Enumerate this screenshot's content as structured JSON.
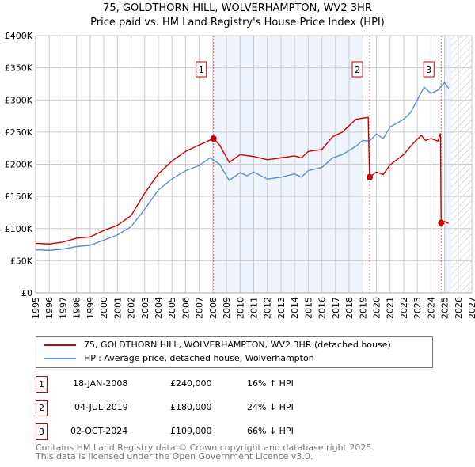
{
  "title": "75, GOLDTHORN HILL, WOLVERHAMPTON, WV2 3HR",
  "subtitle": "Price paid vs. HM Land Registry's House Price Index (HPI)",
  "chart_data": {
    "type": "line",
    "title": "75, GOLDTHORN HILL, WOLVERHAMPTON, WV2 3HR",
    "subtitle": "Price paid vs. HM Land Registry's House Price Index (HPI)",
    "xlim": [
      1995,
      2027
    ],
    "ylim": [
      0,
      400000
    ],
    "x_ticks": [
      "1995",
      "1996",
      "1997",
      "1998",
      "1999",
      "2000",
      "2001",
      "2002",
      "2003",
      "2004",
      "2005",
      "2006",
      "2007",
      "2008",
      "2009",
      "2010",
      "2011",
      "2012",
      "2013",
      "2014",
      "2015",
      "2016",
      "2017",
      "2018",
      "2019",
      "2020",
      "2021",
      "2022",
      "2023",
      "2024",
      "2025",
      "2026",
      "2027"
    ],
    "y_ticks": [
      {
        "v": 0,
        "label": "£0"
      },
      {
        "v": 50000,
        "label": "£50K"
      },
      {
        "v": 100000,
        "label": "£100K"
      },
      {
        "v": 150000,
        "label": "£150K"
      },
      {
        "v": 200000,
        "label": "£200K"
      },
      {
        "v": 250000,
        "label": "£250K"
      },
      {
        "v": 300000,
        "label": "£300K"
      },
      {
        "v": 350000,
        "label": "£350K"
      },
      {
        "v": 400000,
        "label": "£400K"
      }
    ],
    "grid": true,
    "colors": {
      "property": "#cc0000",
      "hpi": "#5b8fd4",
      "shade": "#eef3fc"
    },
    "shaded_ranges": [
      [
        2008.05,
        2019.0
      ],
      [
        2025.0,
        2025.5
      ]
    ],
    "hatched_from": 2025.5,
    "series": [
      {
        "name": "75, GOLDTHORN HILL, WOLVERHAMPTON, WV2 3HR (detached house)",
        "color": "#cc0000",
        "x": [
          1995,
          1996,
          1997,
          1998,
          1999,
          2000,
          2001,
          2002,
          2003,
          2004,
          2005,
          2006,
          2007,
          2008.05,
          2008.5,
          2009.2,
          2010,
          2011,
          2012,
          2013,
          2014,
          2014.5,
          2015,
          2016,
          2016.8,
          2017.5,
          2018.5,
          2019.4,
          2019.5,
          2020,
          2020.5,
          2021,
          2022,
          2022.8,
          2023.3,
          2023.6,
          2024,
          2024.5,
          2024.7,
          2024.75,
          2025,
          2025.3
        ],
        "y": [
          77000,
          76000,
          79000,
          85000,
          87000,
          97000,
          105000,
          120000,
          155000,
          185000,
          205000,
          220000,
          230000,
          240000,
          230000,
          203000,
          215000,
          212000,
          207000,
          210000,
          213000,
          210000,
          220000,
          223000,
          243000,
          250000,
          270000,
          273000,
          180000,
          188000,
          184000,
          199000,
          215000,
          235000,
          245000,
          237000,
          240000,
          236000,
          248000,
          109000,
          111000,
          108000
        ]
      },
      {
        "name": "HPI: Average price, detached house, Wolverhampton",
        "color": "#5b8fd4",
        "x": [
          1995,
          1996,
          1997,
          1998,
          1999,
          2000,
          2001,
          2002,
          2003,
          2004,
          2005,
          2006,
          2007,
          2007.8,
          2008.5,
          2009.2,
          2010,
          2010.5,
          2011,
          2012,
          2013,
          2014,
          2014.5,
          2015,
          2016,
          2016.8,
          2017.5,
          2018.5,
          2019,
          2019.5,
          2020,
          2020.5,
          2021,
          2022,
          2022.5,
          2023,
          2023.5,
          2024,
          2024.5,
          2025,
          2025.3
        ],
        "y": [
          67000,
          66000,
          68000,
          72000,
          74000,
          82000,
          90000,
          103000,
          130000,
          160000,
          177000,
          190000,
          198000,
          210000,
          200000,
          175000,
          187000,
          182000,
          188000,
          177000,
          180000,
          185000,
          180000,
          190000,
          195000,
          210000,
          215000,
          228000,
          237000,
          236000,
          247000,
          240000,
          258000,
          270000,
          280000,
          300000,
          320000,
          310000,
          315000,
          327000,
          318000
        ]
      }
    ],
    "sales": [
      {
        "n": "1",
        "x": 2008.05,
        "price": 240000
      },
      {
        "n": "2",
        "x": 2019.51,
        "price": 180000
      },
      {
        "n": "3",
        "x": 2024.75,
        "price": 109000
      }
    ]
  },
  "legend": {
    "property": "75, GOLDTHORN HILL, WOLVERHAMPTON, WV2 3HR (detached house)",
    "hpi": "HPI: Average price, detached house, Wolverhampton"
  },
  "transactions": [
    {
      "n": "1",
      "date": "18-JAN-2008",
      "price": "£240,000",
      "hpi": "16% ↑ HPI"
    },
    {
      "n": "2",
      "date": "04-JUL-2019",
      "price": "£180,000",
      "hpi": "24% ↓ HPI"
    },
    {
      "n": "3",
      "date": "02-OCT-2024",
      "price": "£109,000",
      "hpi": "66% ↓ HPI"
    }
  ],
  "footer": {
    "line1": "Contains HM Land Registry data © Crown copyright and database right 2025.",
    "line2": "This data is licensed under the Open Government Licence v3.0."
  }
}
